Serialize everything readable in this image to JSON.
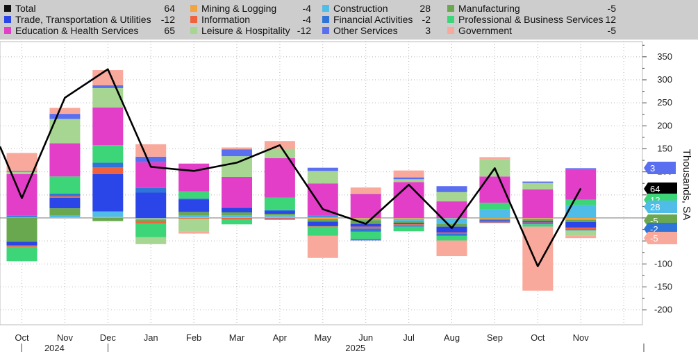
{
  "legend": [
    {
      "name": "Total",
      "value": "64",
      "color": "#111111"
    },
    {
      "name": "Mining & Logging",
      "value": "-4",
      "color": "#f5a33f"
    },
    {
      "name": "Construction",
      "value": "28",
      "color": "#4fbde8"
    },
    {
      "name": "Manufacturing",
      "value": "-5",
      "color": "#6aa84f"
    },
    {
      "name": "Trade, Transportation & Utilities",
      "value": "-12",
      "color": "#2a45e8"
    },
    {
      "name": "Information",
      "value": "-4",
      "color": "#f0623e"
    },
    {
      "name": "Financial Activities",
      "value": "-2",
      "color": "#2f74d9"
    },
    {
      "name": "Professional & Business Services",
      "value": "12",
      "color": "#3cd678"
    },
    {
      "name": "Education & Health Services",
      "value": "65",
      "color": "#e33ec8"
    },
    {
      "name": "Leisure & Hospitality",
      "value": "-12",
      "color": "#a6d691"
    },
    {
      "name": "Other Services",
      "value": "3",
      "color": "#5a6ef0"
    },
    {
      "name": "Government",
      "value": "-5",
      "color": "#f9a89c"
    }
  ],
  "chart_data": {
    "type": "bar",
    "stacked": true,
    "overlay_line": "Total",
    "categories": [
      "Oct",
      "Nov",
      "Dec",
      "Jan",
      "Feb",
      "Mar",
      "Apr",
      "May",
      "Jun",
      "Jul",
      "Aug",
      "Sep",
      "Oct",
      "Nov"
    ],
    "year_labels": [
      {
        "label": "2024",
        "at_index": 1
      },
      {
        "label": "2025",
        "at_index": 8
      }
    ],
    "ylabel": "Thousands, SA",
    "ylim": [
      -220,
      380
    ],
    "yticks": [
      -200,
      -150,
      -100,
      -50,
      0,
      50,
      100,
      150,
      200,
      250,
      300,
      350
    ],
    "series": [
      {
        "name": "Total",
        "values": [
          43,
          261,
          323,
          111,
          102,
          120,
          158,
          19,
          -13,
          72,
          -22,
          108,
          -105,
          64
        ]
      },
      {
        "name": "Mining & Logging",
        "values": [
          0,
          1,
          2,
          -1,
          1,
          1,
          2,
          -3,
          -2,
          -2,
          -1,
          -2,
          -2,
          -4
        ]
      },
      {
        "name": "Construction",
        "values": [
          2,
          4,
          12,
          -3,
          4,
          5,
          4,
          3,
          -3,
          -5,
          -12,
          19,
          -1,
          28
        ]
      },
      {
        "name": "Manufacturing",
        "values": [
          -52,
          16,
          -7,
          -3,
          8,
          6,
          3,
          -5,
          -8,
          -4,
          -6,
          -3,
          -4,
          -5
        ]
      },
      {
        "name": "Trade, Transportation & Utilities",
        "values": [
          -8,
          23,
          81,
          55,
          27,
          10,
          6,
          -10,
          -6,
          -3,
          -13,
          -3,
          -3,
          -12
        ]
      },
      {
        "name": "Information",
        "values": [
          -3,
          3,
          15,
          -5,
          -2,
          -3,
          -2,
          -1,
          -4,
          -3,
          -2,
          -2,
          -2,
          -4
        ]
      },
      {
        "name": "Financial Activities",
        "values": [
          3,
          6,
          10,
          10,
          2,
          1,
          2,
          2,
          -7,
          -2,
          -5,
          -1,
          -2,
          -2
        ]
      },
      {
        "name": "Professional & Business Services",
        "values": [
          -31,
          37,
          38,
          -30,
          16,
          -11,
          27,
          -20,
          -16,
          -10,
          -10,
          14,
          -5,
          12
        ]
      },
      {
        "name": "Education & Health Services",
        "values": [
          90,
          72,
          82,
          56,
          60,
          66,
          86,
          70,
          52,
          78,
          36,
          57,
          62,
          65
        ]
      },
      {
        "name": "Leisure & Hospitality",
        "values": [
          5,
          53,
          42,
          -15,
          -28,
          45,
          20,
          27,
          1,
          6,
          20,
          38,
          14,
          -12
        ]
      },
      {
        "name": "Other Services",
        "values": [
          2,
          11,
          6,
          12,
          0,
          15,
          -2,
          7,
          -3,
          4,
          13,
          0,
          3,
          3
        ]
      },
      {
        "name": "Government",
        "values": [
          39,
          13,
          33,
          27,
          -4,
          4,
          17,
          -48,
          13,
          15,
          -34,
          4,
          -139,
          -5
        ]
      }
    ]
  },
  "right_tags": [
    {
      "text": "3",
      "color": "#5a6ef0",
      "value": 3
    },
    {
      "text": "64",
      "color": "#000000",
      "value": 64
    },
    {
      "text": "12",
      "color": "#3cd678",
      "value": 12
    },
    {
      "text": "28",
      "color": "#4fbde8",
      "value": 28
    },
    {
      "text": "-5",
      "color": "#6aa84f",
      "value": -5
    },
    {
      "text": "-2",
      "color": "#2f74d9",
      "value": -2
    },
    {
      "text": "-5",
      "color": "#f9a89c",
      "value": -5
    }
  ]
}
